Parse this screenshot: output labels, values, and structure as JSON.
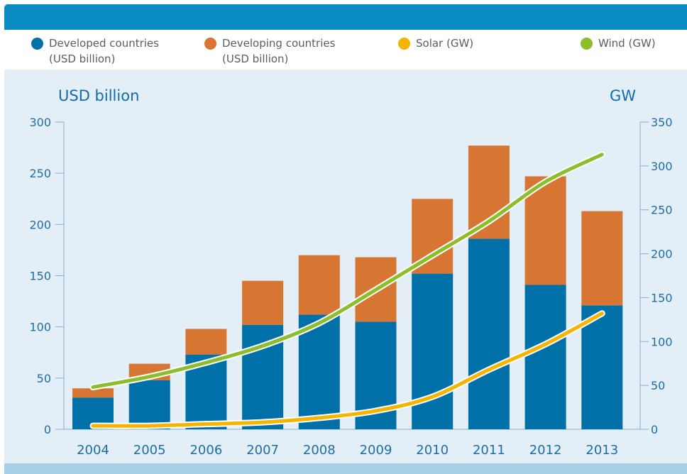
{
  "legend": [
    {
      "label": "Developed countries\n(USD billion)",
      "color": "#0070a8"
    },
    {
      "label": "Developing countries\n(USD billion)",
      "color": "#d67632"
    },
    {
      "label": "Solar (GW)",
      "color": "#f5b400"
    },
    {
      "label": "Wind (GW)",
      "color": "#8cbd2a"
    }
  ],
  "chart_data": {
    "type": "bar",
    "stacked": true,
    "categories": [
      "2004",
      "2005",
      "2006",
      "2007",
      "2008",
      "2009",
      "2010",
      "2011",
      "2012",
      "2013"
    ],
    "series": [
      {
        "name": "Developed countries (USD billion)",
        "axis": "left",
        "color": "#0070a8",
        "values": [
          31,
          48,
          73,
          102,
          112,
          105,
          152,
          186,
          141,
          121
        ]
      },
      {
        "name": "Developing countries (USD billion)",
        "axis": "left",
        "color": "#d67632",
        "values": [
          9,
          16,
          25,
          43,
          58,
          63,
          73,
          91,
          106,
          92
        ]
      },
      {
        "name": "Solar (GW)",
        "type": "line",
        "axis": "right",
        "color": "#f5b400",
        "values": [
          4,
          4,
          6,
          8,
          13,
          21,
          37,
          68,
          97,
          132
        ]
      },
      {
        "name": "Wind (GW)",
        "type": "line",
        "axis": "right",
        "color": "#8cbd2a",
        "values": [
          48,
          60,
          76,
          95,
          121,
          159,
          198,
          237,
          282,
          313
        ]
      }
    ],
    "ylabel_left": "USD billion",
    "ylabel_right": "GW",
    "ylim_left": [
      0,
      300
    ],
    "ylim_right": [
      0,
      350
    ],
    "yticks_left": [
      "0",
      "50",
      "100",
      "150",
      "200",
      "250",
      "300"
    ],
    "yticks_right": [
      "0",
      "50",
      "100",
      "150",
      "200",
      "250",
      "300",
      "350"
    ],
    "grid": false,
    "legend_position": "top"
  }
}
